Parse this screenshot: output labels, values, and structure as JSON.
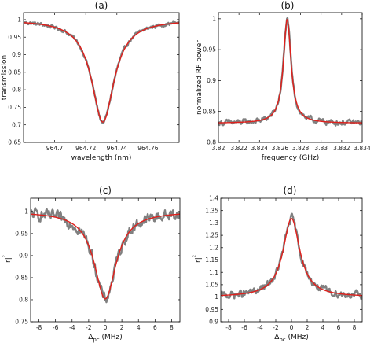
{
  "colors": {
    "data": "#808080",
    "fit": "#e0201c"
  },
  "chart_data": [
    {
      "panel": "(a)",
      "type": "line",
      "xlabel": "wavelength (nm)",
      "ylabel": "transmission",
      "ylabel_rich": false,
      "xlim": [
        964.68,
        964.78
      ],
      "ylim": [
        0.65,
        1.02
      ],
      "xticks": [
        964.7,
        964.72,
        964.74,
        964.76
      ],
      "xtick_labels": [
        "964.7",
        "964.72",
        "964.74",
        "964.76"
      ],
      "yticks": [
        0.65,
        0.7,
        0.75,
        0.8,
        0.85,
        0.9,
        0.95,
        1.0
      ],
      "ytick_labels": [
        "0.65",
        "0.7",
        "0.75",
        "0.8",
        "0.85",
        "0.9",
        "0.95",
        "1"
      ],
      "grid": false,
      "legend": "none",
      "shape": "dip",
      "center": 964.731,
      "hwhm": 0.0088,
      "baseline": 1.0,
      "peak": 0.708,
      "noise": 0.004,
      "slope": -0.0
    },
    {
      "panel": "(b)",
      "type": "line",
      "xlabel": "frequency (GHz)",
      "ylabel": "normalized RF power",
      "ylabel_rich": false,
      "xlim": [
        3.82,
        3.834
      ],
      "ylim": [
        0.8,
        1.01
      ],
      "xticks": [
        3.82,
        3.822,
        3.824,
        3.826,
        3.828,
        3.83,
        3.832,
        3.834
      ],
      "xtick_labels": [
        "3.82",
        "3.822",
        "3.824",
        "3.826",
        "3.828",
        "3.83",
        "3.832",
        "3.834"
      ],
      "yticks": [
        0.8,
        0.85,
        0.9,
        0.95,
        1.0
      ],
      "ytick_labels": [
        "0.8",
        "0.85",
        "0.9",
        "0.95",
        "1"
      ],
      "grid": false,
      "legend": "none",
      "shape": "peak",
      "center": 3.8267,
      "hwhm": 0.00045,
      "baseline": 0.831,
      "peak": 0.999,
      "noise": 0.0035
    },
    {
      "panel": "(c)",
      "type": "line",
      "xlabel": "Δpc (MHz)",
      "ylabel": "|r|²",
      "ylabel_rich": true,
      "xlim": [
        -9,
        9
      ],
      "ylim": [
        0.75,
        1.03
      ],
      "xticks": [
        -8,
        -6,
        -4,
        -2,
        0,
        2,
        4,
        6,
        8
      ],
      "xtick_labels": [
        "-8",
        "-6",
        "-4",
        "-2",
        "0",
        "2",
        "4",
        "6",
        "8"
      ],
      "yticks": [
        0.75,
        0.8,
        0.85,
        0.9,
        0.95,
        1.0
      ],
      "ytick_labels": [
        "0.75",
        "0.8",
        "0.85",
        "0.9",
        "0.95",
        "1"
      ],
      "grid": false,
      "legend": "none",
      "shape": "dip",
      "center": 0.0,
      "hwhm": 1.6,
      "baseline": 1.0,
      "peak": 0.802,
      "noise": 0.01
    },
    {
      "panel": "(d)",
      "type": "line",
      "xlabel": "Δpc (MHz)",
      "ylabel": "|r|²",
      "ylabel_rich": true,
      "xlim": [
        -9,
        9
      ],
      "ylim": [
        0.9,
        1.4
      ],
      "xticks": [
        -8,
        -6,
        -4,
        -2,
        0,
        2,
        4,
        6,
        8
      ],
      "xtick_labels": [
        "-8",
        "-6",
        "-4",
        "-2",
        "0",
        "2",
        "4",
        "6",
        "8"
      ],
      "yticks": [
        0.9,
        0.95,
        1.0,
        1.05,
        1.1,
        1.15,
        1.2,
        1.25,
        1.3,
        1.35,
        1.4
      ],
      "ytick_labels": [
        "0.9",
        "0.95",
        "1",
        "1.05",
        "1.1",
        "1.15",
        "1.2",
        "1.25",
        "1.3",
        "1.35",
        "1.4"
      ],
      "grid": false,
      "legend": "none",
      "shape": "peak",
      "center": 0.0,
      "hwhm": 1.3,
      "baseline": 1.0,
      "peak": 1.318,
      "noise": 0.012
    }
  ]
}
